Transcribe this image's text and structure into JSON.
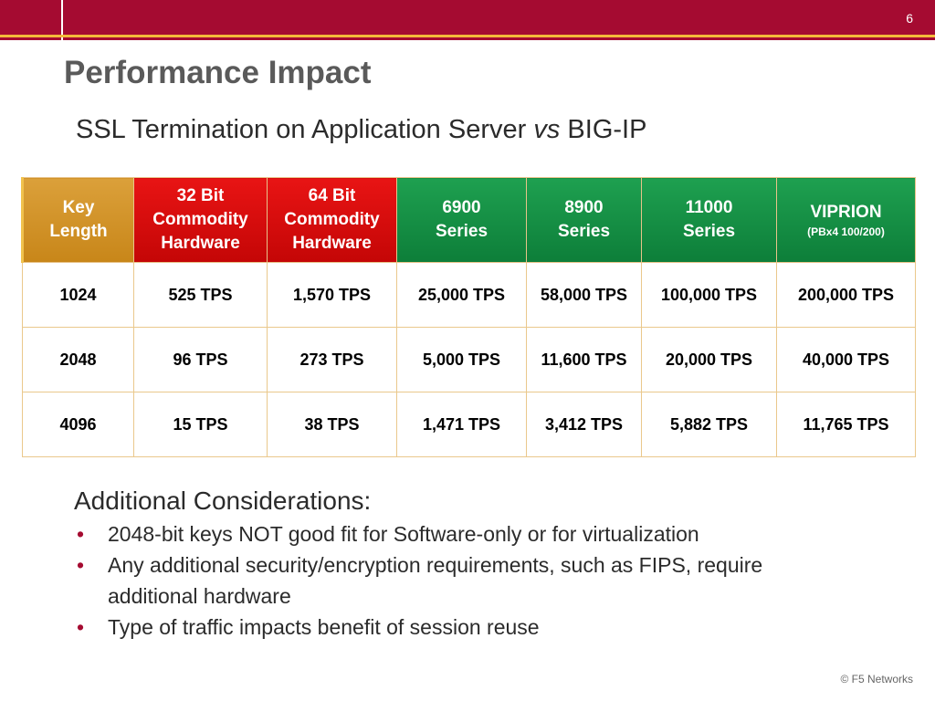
{
  "slide": {
    "number": "6",
    "title": "Performance Impact",
    "subtitle": {
      "before": "SSL Termination on Application Server",
      "italic": "vs",
      "after": "BIG-IP"
    }
  },
  "colors": {
    "brand_red": "#a50b31",
    "accent_gold": "#f4b93a",
    "header_red": "#e81414",
    "header_green": "#1ea050",
    "header_key": "#dba03a"
  },
  "table": {
    "headers": [
      {
        "lines": [
          "Key",
          "Length"
        ],
        "color": "key"
      },
      {
        "lines": [
          "32 Bit",
          "Commodity",
          "Hardware"
        ],
        "color": "red"
      },
      {
        "lines": [
          "64 Bit",
          "Commodity",
          "Hardware"
        ],
        "color": "red"
      },
      {
        "lines": [
          "6900",
          "Series"
        ],
        "color": "green"
      },
      {
        "lines": [
          "8900",
          "Series"
        ],
        "color": "green"
      },
      {
        "lines": [
          "11000",
          "Series"
        ],
        "color": "green"
      },
      {
        "lines": [
          "VIPRION"
        ],
        "sub": "(PBx4 100/200)",
        "color": "green"
      }
    ],
    "rows": [
      [
        "1024",
        "525 TPS",
        "1,570 TPS",
        "25,000 TPS",
        "58,000 TPS",
        "100,000 TPS",
        "200,000 TPS"
      ],
      [
        "2048",
        "96 TPS",
        "273 TPS",
        "5,000 TPS",
        "11,600 TPS",
        "20,000 TPS",
        "40,000 TPS"
      ],
      [
        "4096",
        "15 TPS",
        "38 TPS",
        "1,471 TPS",
        "3,412 TPS",
        "5,882 TPS",
        "11,765 TPS"
      ]
    ]
  },
  "considerations": {
    "heading": "Additional Considerations:",
    "bullet_glyph": "•",
    "items": [
      "2048-bit keys NOT good fit for Software-only or for virtualization",
      "Any additional security/encryption requirements, such as FIPS, require additional hardware",
      "Type of traffic impacts benefit of session reuse"
    ]
  },
  "footer": {
    "copyright": "© F5 Networks"
  }
}
